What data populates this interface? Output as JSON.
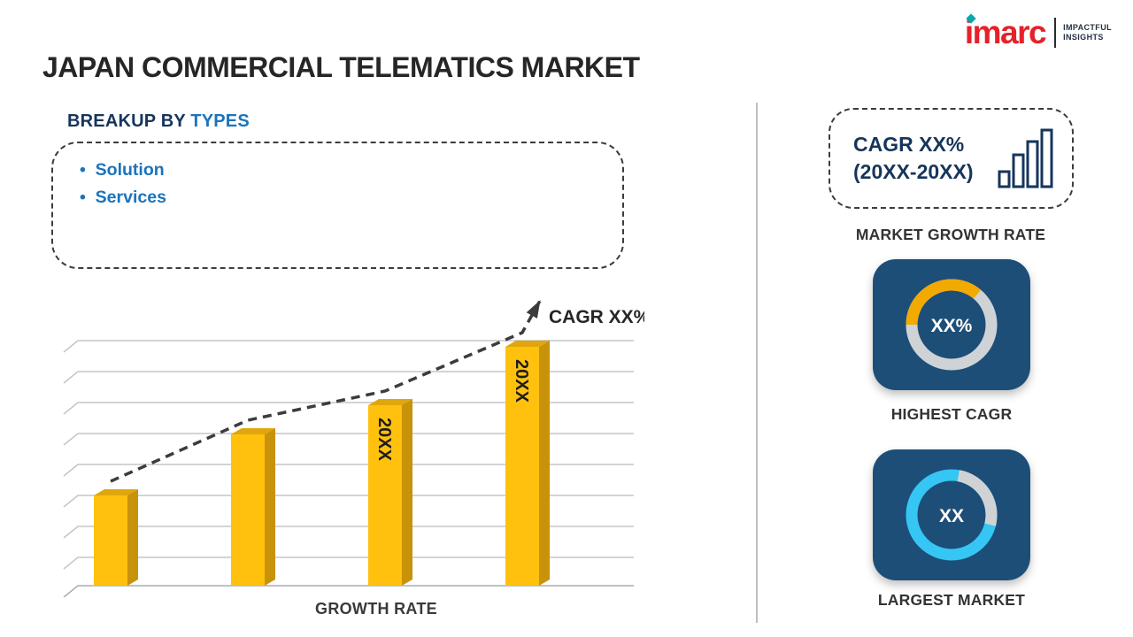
{
  "header": {
    "title": "JAPAN COMMERCIAL TELEMATICS MARKET",
    "logo": {
      "brand": "imarc",
      "tagline_line1": "IMPACTFUL",
      "tagline_line2": "INSIGHTS"
    }
  },
  "breakup": {
    "heading": "BREAKUP BY ",
    "heading_highlight": "TYPES",
    "items": [
      "Solution",
      "Services"
    ]
  },
  "chart_data": {
    "type": "bar",
    "categories": [
      "",
      "",
      "20XX",
      "20XX"
    ],
    "values": [
      34,
      57,
      68,
      90
    ],
    "ylim": [
      0,
      100
    ],
    "grid": true,
    "title": "",
    "xlabel": "GROWTH RATE",
    "ylabel": "",
    "annotation": "CAGR XX%",
    "trend": "dashed-arrow-increasing",
    "bar_color": "#FFC10E",
    "bar_side_color": "#C8920B",
    "bar_top_color": "#DFA70B"
  },
  "sidebar": {
    "cagr_box": {
      "line1": "CAGR XX%",
      "line2": "(20XX-20XX)"
    },
    "market_growth_label": "MARKET GROWTH RATE",
    "highest_cagr": {
      "value": "XX%",
      "label": "HIGHEST CAGR"
    },
    "largest_market": {
      "value": "XX",
      "label": "LARGEST MARKET"
    }
  },
  "colors": {
    "accent_orange": "#F2A900",
    "accent_cyan": "#35C6F4",
    "tile_navy": "#1D4E77",
    "ring_gray": "#CFD3D6",
    "heading_navy": "#16355C",
    "link_blue": "#1B74BC",
    "brand_red": "#E62129"
  }
}
